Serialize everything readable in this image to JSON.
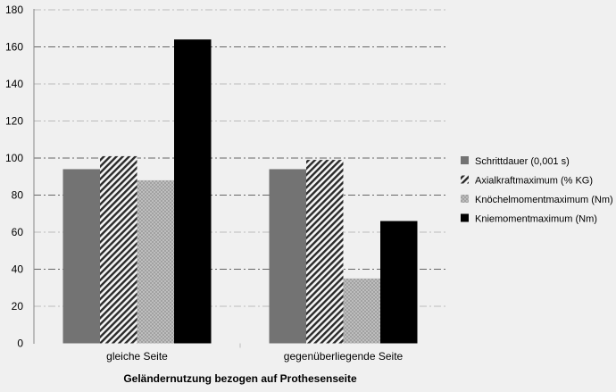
{
  "chart_data": {
    "type": "bar",
    "title": "",
    "xlabel": "Geländernutzung bezogen auf Prothesenseite",
    "ylabel": "",
    "ylim": [
      0,
      180
    ],
    "yticks": [
      0,
      20,
      40,
      60,
      80,
      100,
      120,
      140,
      160,
      180
    ],
    "categories": [
      "gleiche Seite",
      "gegenüberliegende Seite"
    ],
    "series": [
      {
        "name": "Schrittdauer (0,001 s)",
        "values": [
          94,
          94
        ],
        "color": "#737373",
        "pattern": "solid"
      },
      {
        "name": "Axialkraftmaximum (% KG)",
        "values": [
          101,
          99
        ],
        "color": "#333333",
        "pattern": "diagonal"
      },
      {
        "name": "Knöchelmomentmaximum (Nm)",
        "values": [
          88,
          35
        ],
        "color": "#b0b0b0",
        "pattern": "checker"
      },
      {
        "name": "Kniemomentmaximum (Nm)",
        "values": [
          164,
          66
        ],
        "color": "#000000",
        "pattern": "solid"
      }
    ],
    "grid": true,
    "legend_position": "right"
  }
}
